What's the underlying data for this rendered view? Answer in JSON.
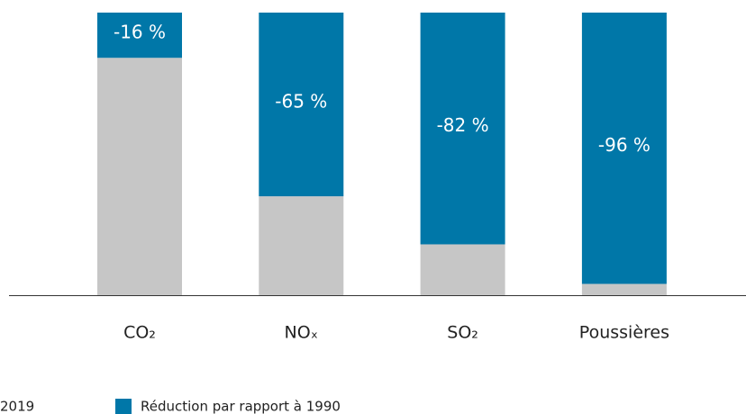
{
  "chart_data": {
    "type": "stacked_bar",
    "categories": [
      "CO₂",
      "NOₓ",
      "SO₂",
      "Poussières"
    ],
    "series": [
      {
        "name": "2019",
        "color": "#c6c6c6",
        "values": [
          84,
          35,
          18,
          4
        ]
      },
      {
        "name": "Réduction par rapport à 1990",
        "color": "#0077a8",
        "values": [
          16,
          65,
          82,
          96
        ],
        "value_labels": [
          "-16 %",
          "-65 %",
          "-82 %",
          "-96 %"
        ]
      }
    ],
    "ylim": [
      0,
      100
    ]
  }
}
